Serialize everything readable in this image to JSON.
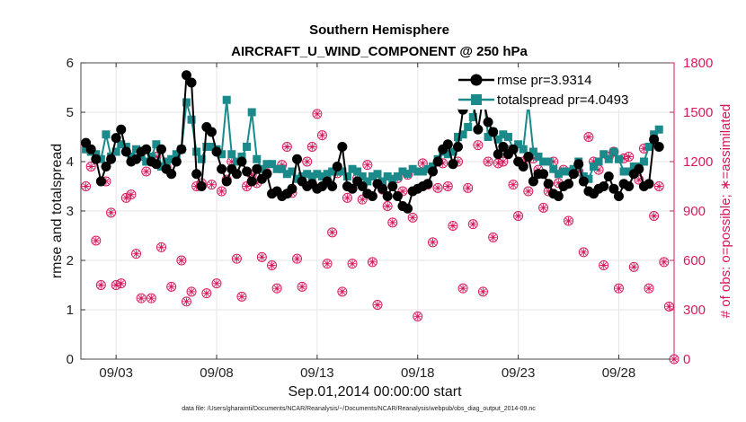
{
  "chart_data": {
    "type": "line",
    "title": "Southern Hemisphere",
    "subtitle": "AIRCRAFT_U_WIND_COMPONENT @ 250 hPa",
    "xlabel": "Sep.01,2014 00:00:00 start",
    "ylabel": "rmse and totalspread",
    "y2label": "# of obs: o=possible; ∗=assimilated",
    "footnote": "data file: /Users/gharamti/Documents/NCAR/Reanalysis/~/Documents/NCAR/Reanalysis/webpub/obs_diag_output_2014-09.nc",
    "xlim": [
      1.25,
      30.75
    ],
    "ylim": [
      0,
      6
    ],
    "y2lim": [
      0,
      1800
    ],
    "xticks": [
      3,
      8,
      13,
      18,
      23,
      28
    ],
    "xtick_labels": [
      "09/03",
      "09/08",
      "09/13",
      "09/18",
      "09/23",
      "09/28"
    ],
    "yticks": [
      0,
      1,
      2,
      3,
      4,
      5,
      6
    ],
    "ytick_labels": [
      "0",
      "1",
      "2",
      "3",
      "4",
      "5",
      "6"
    ],
    "y2ticks": [
      0,
      300,
      600,
      900,
      1200,
      1500,
      1800
    ],
    "y2tick_labels": [
      "0",
      "300",
      "600",
      "900",
      "1200",
      "1500",
      "1800"
    ],
    "x_start": 1.5,
    "x_step": 0.25,
    "series": [
      {
        "name": "rmse pr=3.9314",
        "color": "#000000",
        "marker": "circle",
        "values": [
          4.38,
          4.25,
          4.05,
          3.6,
          3.9,
          4.05,
          4.48,
          4.65,
          4.2,
          4.0,
          4.05,
          4.2,
          4.25,
          4.0,
          3.95,
          4.25,
          3.85,
          3.75,
          4.0,
          4.25,
          5.75,
          5.6,
          3.75,
          3.5,
          4.7,
          4.6,
          4.2,
          3.85,
          3.6,
          3.85,
          3.75,
          4.0,
          3.8,
          3.6,
          3.85,
          3.65,
          3.75,
          3.35,
          3.4,
          3.3,
          3.35,
          3.45,
          4.05,
          3.6,
          3.5,
          3.55,
          3.45,
          3.5,
          3.6,
          3.5,
          3.9,
          4.3,
          3.5,
          3.45,
          3.6,
          3.5,
          3.35,
          3.3,
          3.55,
          3.45,
          3.3,
          3.5,
          3.3,
          3.1,
          3.05,
          3.4,
          3.45,
          3.5,
          3.55,
          3.8,
          4.0,
          4.25,
          4.35,
          3.95,
          4.3,
          5.05,
          5.55,
          5.2,
          4.65,
          5.3,
          4.8,
          4.6,
          4.15,
          4.3,
          4.15,
          4.25,
          4.0,
          3.9,
          4.1,
          3.6,
          3.75,
          3.75,
          3.55,
          3.35,
          3.3,
          3.5,
          3.55,
          3.75,
          3.95,
          3.6,
          3.4,
          3.35,
          3.45,
          3.5,
          3.7,
          3.45,
          3.3,
          3.55,
          3.5,
          3.75,
          3.85,
          3.5,
          3.55,
          4.45,
          4.3
        ]
      },
      {
        "name": "totalspread pr=4.0493",
        "color": "#1a8a8a",
        "marker": "square",
        "values": [
          4.25,
          4.2,
          4.15,
          4.05,
          4.55,
          4.1,
          4.2,
          4.35,
          4.3,
          4.1,
          4.25,
          4.1,
          4.0,
          4.1,
          4.35,
          3.9,
          4.0,
          4.05,
          4.15,
          4.25,
          5.2,
          4.85,
          4.2,
          4.05,
          4.3,
          4.3,
          4.25,
          4.15,
          5.25,
          4.15,
          4.0,
          4.1,
          4.3,
          5.0,
          4.05,
          3.85,
          3.95,
          3.95,
          3.85,
          3.85,
          3.75,
          3.8,
          3.65,
          3.7,
          3.75,
          3.7,
          3.75,
          3.7,
          3.75,
          3.8,
          3.8,
          3.8,
          3.7,
          3.85,
          3.8,
          3.7,
          3.6,
          3.7,
          3.75,
          3.6,
          3.7,
          3.65,
          3.7,
          3.8,
          3.75,
          3.85,
          3.8,
          3.8,
          3.85,
          3.9,
          4.05,
          4.2,
          4.15,
          4.2,
          4.5,
          4.55,
          4.7,
          4.9,
          5.6,
          5.45,
          4.5,
          4.6,
          4.45,
          4.55,
          4.5,
          4.25,
          4.35,
          4.25,
          5.2,
          4.2,
          4.1,
          4.0,
          4.0,
          3.85,
          3.75,
          3.8,
          3.8,
          3.85,
          4.0,
          3.7,
          3.65,
          3.9,
          4.0,
          4.15,
          4.05,
          4.2,
          4.05,
          3.8,
          3.8,
          3.9,
          3.9,
          4.0,
          4.3,
          4.55,
          4.65
        ]
      },
      {
        "name": "possible",
        "axis": "right",
        "color": "#d6195c",
        "marker": "open-circle",
        "values": [
          1050,
          1170,
          720,
          450,
          1080,
          890,
          450,
          460,
          980,
          1000,
          640,
          370,
          1140,
          370,
          1230,
          680,
          1170,
          440,
          1200,
          600,
          350,
          410,
          1050,
          1070,
          400,
          1060,
          460,
          1020,
          1090,
          1200,
          610,
          380,
          1050,
          1120,
          1070,
          620,
          1130,
          570,
          430,
          1180,
          1290,
          1010,
          610,
          440,
          1200,
          1290,
          1490,
          1360,
          580,
          770,
          1130,
          410,
          980,
          580,
          1100,
          970,
          1180,
          590,
          330,
          1030,
          930,
          830,
          1100,
          1020,
          1120,
          860,
          260,
          1190,
          1060,
          710,
          1040,
          1190,
          1050,
          810,
          1200,
          430,
          1040,
          820,
          1300,
          410,
          1200,
          740,
          1190,
          1200,
          1270,
          1060,
          870,
          1200,
          1020,
          1220,
          1150,
          920,
          1020,
          1200,
          1070,
          1150,
          840,
          1140,
          1140,
          650,
          1350,
          1200,
          1150,
          570,
          1230,
          1260,
          430,
          1220,
          1230,
          560,
          1090,
          1280,
          430,
          870,
          1050,
          590,
          320,
          0
        ]
      }
    ],
    "legend": [
      "rmse pr=3.9314",
      "totalspread pr=4.0493"
    ],
    "legend_position": "top-right"
  }
}
